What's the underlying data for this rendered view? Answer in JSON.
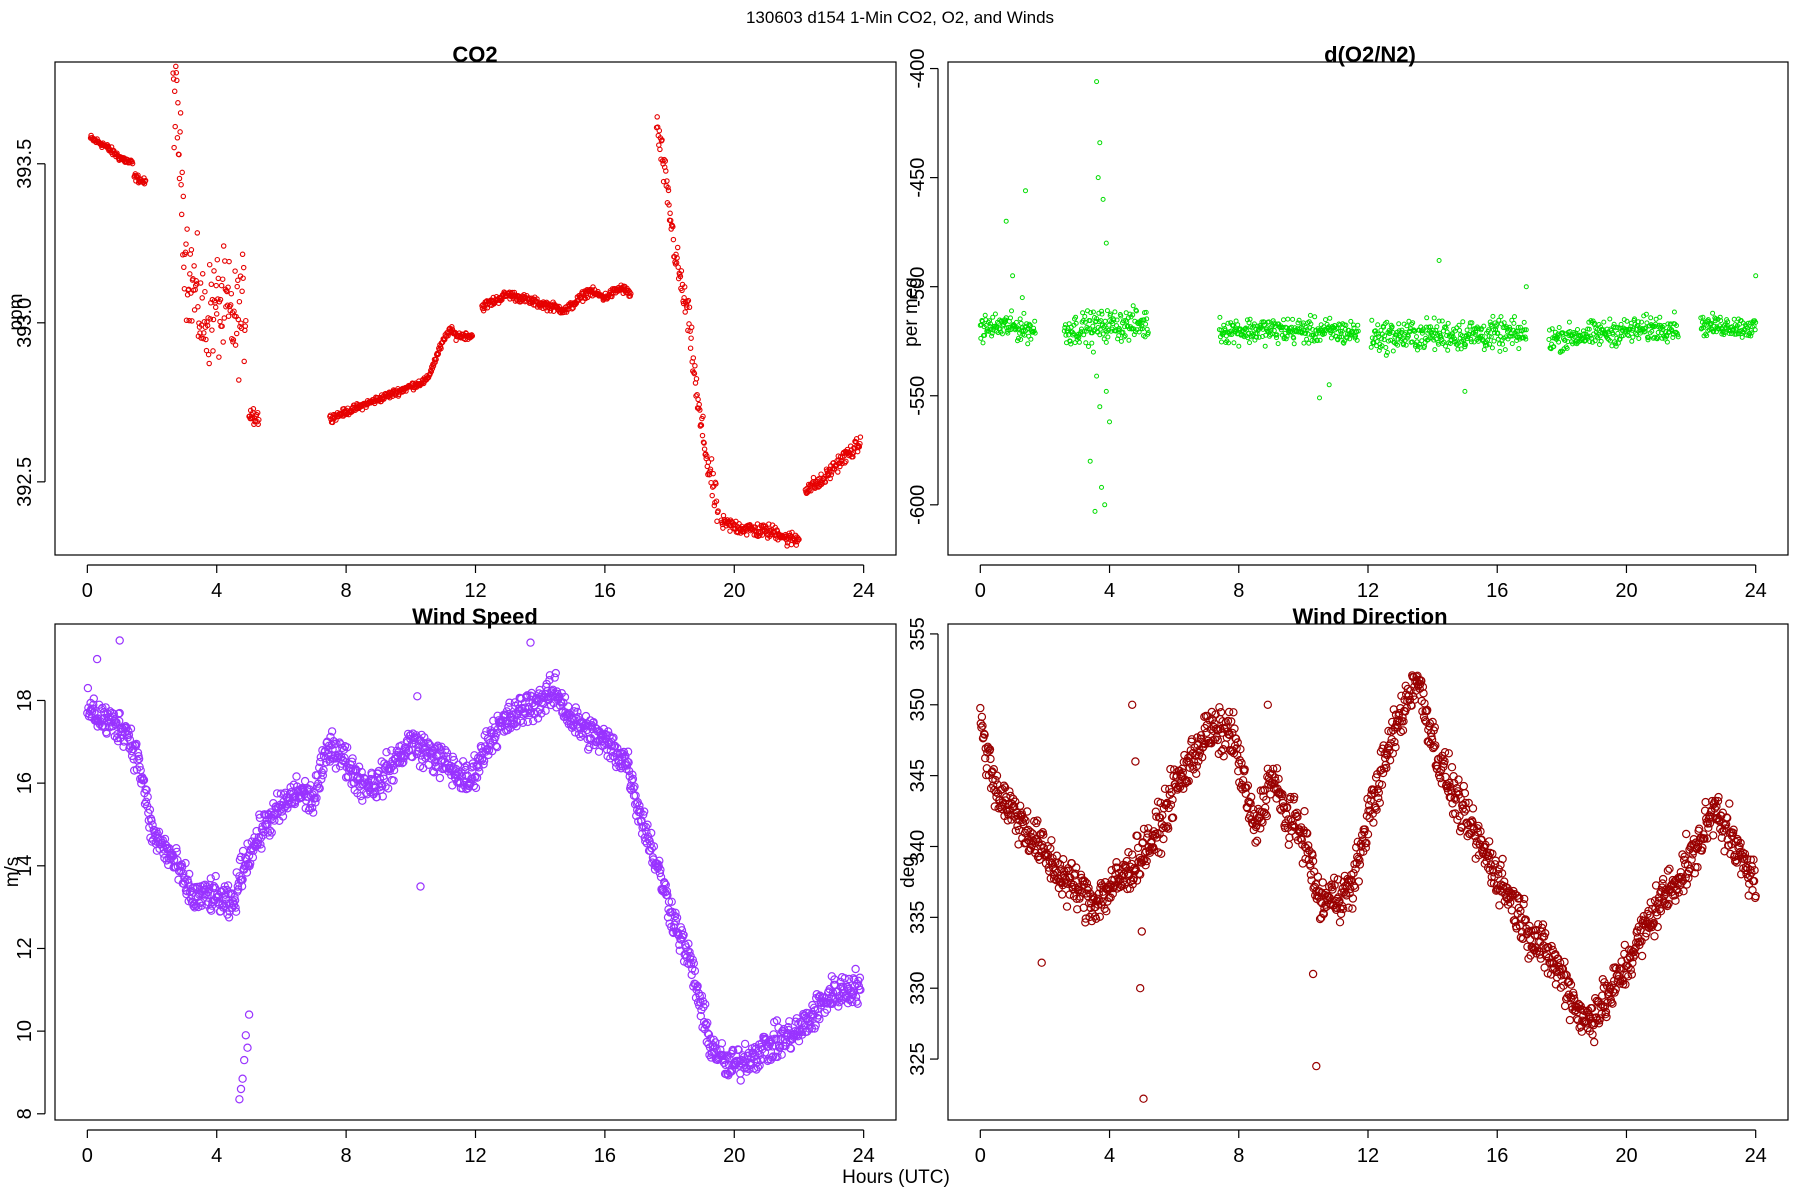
{
  "figure": {
    "suptitle": "130603   d154   1-Min CO2, O2, and Winds",
    "xlabel": "Hours (UTC)"
  },
  "chart_data": [
    {
      "type": "scatter",
      "title": "CO2",
      "ylabel": "ppm",
      "xlabel": "",
      "color": "#e60000",
      "xlim": [
        -1,
        25
      ],
      "ylim": [
        392.27,
        393.82
      ],
      "xticks": [
        0,
        4,
        8,
        12,
        16,
        20,
        24
      ],
      "yticks": [
        392.5,
        393.0,
        393.5
      ],
      "ytick_labels": [
        "392.5",
        "393.0",
        "393.5"
      ],
      "segments": [
        {
          "x": [
            0.1,
            0.5,
            1.0,
            1.4
          ],
          "y": [
            393.58,
            393.56,
            393.52,
            393.5
          ],
          "spread": 0.01
        },
        {
          "x": [
            1.45,
            1.8
          ],
          "y": [
            393.46,
            393.44
          ],
          "spread": 0.01
        },
        {
          "x": [
            2.65,
            2.85,
            3.05,
            3.3,
            3.6,
            3.9,
            4.2,
            4.6,
            4.9
          ],
          "y": [
            393.75,
            393.55,
            393.2,
            393.1,
            393.0,
            393.05,
            393.05,
            393.0,
            393.05
          ],
          "spread": 0.14
        },
        {
          "x": [
            5.0,
            5.3
          ],
          "y": [
            392.72,
            392.7
          ],
          "spread": 0.03
        },
        {
          "x": [
            7.5,
            8.5,
            9.5,
            10.5,
            10.9,
            11.2,
            11.4,
            11.9
          ],
          "y": [
            392.7,
            392.74,
            392.78,
            392.82,
            392.92,
            392.98,
            392.96,
            392.96
          ],
          "spread": 0.01
        },
        {
          "x": [
            12.2,
            13.0,
            14.0,
            14.8,
            15.5,
            16.0,
            16.5,
            16.8
          ],
          "y": [
            393.05,
            393.09,
            393.06,
            393.04,
            393.1,
            393.08,
            393.11,
            393.09
          ],
          "spread": 0.012
        },
        {
          "x": [
            17.6,
            17.8,
            18.2,
            18.6,
            18.9,
            19.2,
            19.5
          ],
          "y": [
            393.62,
            393.5,
            393.2,
            393.0,
            392.72,
            392.55,
            392.4
          ],
          "spread": 0.05
        },
        {
          "x": [
            19.6,
            20.5,
            21.4,
            21.6,
            22.0
          ],
          "y": [
            392.37,
            392.35,
            392.34,
            392.32,
            392.32
          ],
          "spread": 0.02
        },
        {
          "x": [
            22.2,
            22.7,
            23.2,
            23.9
          ],
          "y": [
            392.48,
            392.5,
            392.56,
            392.62
          ],
          "spread": 0.02
        }
      ]
    },
    {
      "type": "scatter",
      "title": "d(O2/N2)",
      "ylabel": "per meg",
      "xlabel": "",
      "color": "#00dd00",
      "xlim": [
        -1,
        25
      ],
      "ylim": [
        -623,
        -397
      ],
      "xticks": [
        0,
        4,
        8,
        12,
        16,
        20,
        24
      ],
      "yticks": [
        -600,
        -550,
        -500,
        -450,
        -400
      ],
      "ytick_labels": [
        "-600",
        "-550",
        "-500",
        "-450",
        "-400"
      ],
      "segments": [
        {
          "x": [
            0.0,
            0.8,
            1.7
          ],
          "y": [
            -519,
            -518,
            -520
          ],
          "spread": 5
        },
        {
          "x": [
            2.6,
            3.7,
            5.2
          ],
          "y": [
            -520,
            -518,
            -517
          ],
          "spread": 6
        },
        {
          "x": [
            7.4,
            9.5,
            11.7
          ],
          "y": [
            -520,
            -520,
            -521
          ],
          "spread": 5
        },
        {
          "x": [
            12.1,
            14.0,
            16.9
          ],
          "y": [
            -523,
            -522,
            -522
          ],
          "spread": 6
        },
        {
          "x": [
            17.6,
            19.5,
            21.6
          ],
          "y": [
            -524,
            -521,
            -518
          ],
          "spread": 5
        },
        {
          "x": [
            22.3,
            23.1,
            24.0
          ],
          "y": [
            -518,
            -518,
            -519
          ],
          "spread": 4
        }
      ],
      "outliers": {
        "x": [
          0.8,
          1.0,
          1.3,
          1.4,
          3.6,
          3.7,
          3.65,
          3.8,
          3.9,
          3.5,
          3.6,
          3.7,
          3.9,
          3.4,
          3.75,
          3.85,
          3.55,
          4.0,
          10.5,
          10.8,
          14.2,
          15.0,
          16.9,
          24.0
        ],
        "y": [
          -470,
          -495,
          -505,
          -456,
          -406,
          -434,
          -450,
          -460,
          -480,
          -530,
          -541,
          -555,
          -548,
          -580,
          -592,
          -600,
          -603,
          -562,
          -551,
          -545,
          -488,
          -548,
          -500,
          -495
        ]
      }
    },
    {
      "type": "scatter",
      "title": "Wind Speed",
      "ylabel": "m/s",
      "xlabel": "",
      "color": "#9933ff",
      "xlim": [
        -1,
        25
      ],
      "ylim": [
        7.85,
        19.85
      ],
      "xticks": [
        0,
        4,
        8,
        12,
        16,
        20,
        24
      ],
      "yticks": [
        8,
        10,
        12,
        14,
        16,
        18
      ],
      "ytick_labels": [
        "8",
        "10",
        "12",
        "14",
        "16",
        "18"
      ],
      "segments": [
        {
          "x": [
            0.0,
            0.6,
            1.2,
            1.6,
            2.0,
            2.6,
            3.3,
            3.8,
            4.5,
            4.8,
            5.5,
            6.5,
            7.0,
            7.5,
            8.5,
            9.0,
            10.0,
            11.0,
            11.8,
            12.5,
            13.5,
            14.5,
            15.0,
            16.0,
            16.7,
            17.0,
            17.5,
            18.0,
            18.7,
            19.2,
            19.8,
            21.0,
            22.0,
            23.0,
            23.9
          ],
          "y": [
            17.8,
            17.5,
            17.3,
            16.5,
            14.8,
            14.2,
            13.2,
            13.3,
            13.0,
            14.0,
            15.0,
            15.8,
            15.6,
            17.0,
            16.0,
            16.0,
            17.0,
            16.5,
            16.0,
            17.2,
            17.8,
            18.2,
            17.5,
            17.0,
            16.5,
            15.5,
            14.3,
            13.0,
            11.5,
            9.8,
            9.1,
            9.6,
            10.0,
            10.9,
            11.1
          ],
          "spread": 0.35
        }
      ],
      "outliers": {
        "x": [
          4.7,
          4.75,
          4.8,
          4.85,
          4.9,
          4.95,
          5.0,
          10.2,
          10.3,
          13.7,
          1.0,
          0.3
        ],
        "y": [
          8.35,
          8.6,
          8.85,
          9.3,
          9.9,
          9.6,
          10.4,
          18.1,
          13.5,
          19.4,
          19.45,
          19.0
        ]
      }
    },
    {
      "type": "scatter",
      "title": "Wind Direction",
      "ylabel": "deg",
      "xlabel": "",
      "color": "#990000",
      "xlim": [
        -1,
        25
      ],
      "ylim": [
        320.7,
        355.7
      ],
      "xticks": [
        0,
        4,
        8,
        12,
        16,
        20,
        24
      ],
      "yticks": [
        325,
        330,
        335,
        340,
        345,
        350,
        355
      ],
      "ytick_labels": [
        "325",
        "330",
        "335",
        "340",
        "345",
        "350",
        "355"
      ],
      "segments": [
        {
          "x": [
            0.0,
            0.5,
            1.5,
            2.5,
            3.5,
            4.5,
            5.5,
            6.0,
            7.0,
            7.8,
            8.5,
            9.0,
            9.5,
            10.0,
            10.5,
            11.5,
            12.0,
            12.8,
            13.5,
            14.2,
            15.0,
            16.0,
            17.0,
            18.0,
            18.7,
            19.5,
            20.3,
            21.0,
            22.0,
            22.8,
            23.3,
            24.0
          ],
          "y": [
            348.5,
            344.0,
            341.0,
            338.0,
            336.0,
            338.0,
            341.0,
            344.0,
            348.0,
            348.0,
            341.0,
            345.0,
            342.0,
            341.0,
            336.0,
            337.0,
            342.0,
            348.0,
            352.0,
            346.0,
            342.0,
            338.0,
            334.0,
            331.0,
            327.5,
            329.5,
            333.0,
            336.0,
            339.0,
            343.0,
            340.0,
            337.5
          ],
          "spread": 1.4
        }
      ],
      "outliers": {
        "x": [
          1.9,
          4.7,
          4.8,
          4.95,
          5.0,
          5.05,
          8.9,
          10.3,
          10.4
        ],
        "y": [
          331.8,
          350.0,
          346.0,
          330.0,
          334.0,
          322.2,
          350.0,
          331.0,
          324.5
        ]
      }
    }
  ]
}
